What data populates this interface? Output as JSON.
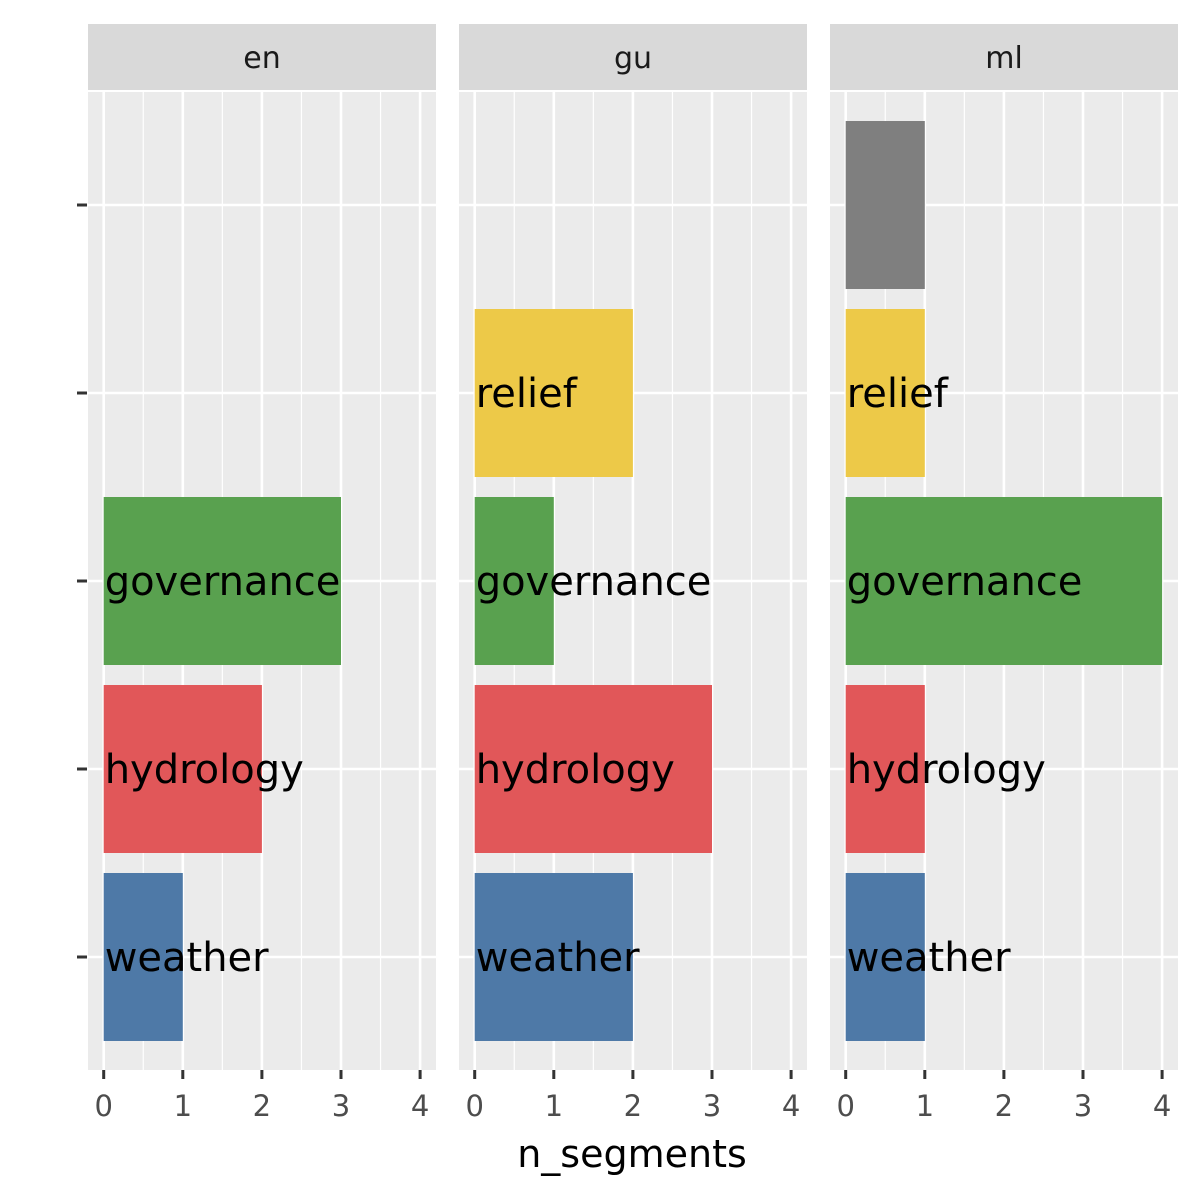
{
  "chart_data": {
    "type": "bar",
    "orientation": "horizontal",
    "facet_by": "language",
    "facets": [
      "en",
      "gu",
      "ml"
    ],
    "categories": [
      "weather",
      "hydrology",
      "governance",
      "relief",
      ""
    ],
    "category_colors": {
      "weather": "#4E79A7",
      "hydrology": "#E15759",
      "governance": "#59A14F",
      "relief": "#EDC948",
      "": "#7F7F7F"
    },
    "panels": [
      {
        "facet": "en",
        "values": {
          "weather": 1,
          "hydrology": 2,
          "governance": 3
        }
      },
      {
        "facet": "gu",
        "values": {
          "weather": 2,
          "hydrology": 3,
          "governance": 1,
          "relief": 2
        }
      },
      {
        "facet": "ml",
        "values": {
          "weather": 1,
          "hydrology": 1,
          "governance": 4,
          "relief": 1,
          "": 1
        }
      }
    ],
    "xlabel": "n_segments",
    "ylabel": "",
    "xlim": [
      0,
      4
    ],
    "x_ticks": [
      0,
      1,
      2,
      3,
      4
    ],
    "grid": true,
    "panel_background": "#EBEBEB",
    "strip_background": "#D9D9D9",
    "legend": "none"
  }
}
